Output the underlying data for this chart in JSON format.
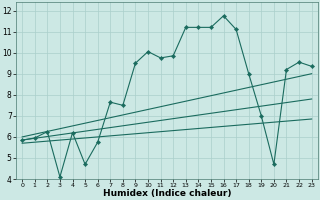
{
  "xlabel": "Humidex (Indice chaleur)",
  "xlim": [
    -0.5,
    23.5
  ],
  "ylim": [
    4,
    12.4
  ],
  "yticks": [
    4,
    5,
    6,
    7,
    8,
    9,
    10,
    11,
    12
  ],
  "xticks": [
    0,
    1,
    2,
    3,
    4,
    5,
    6,
    7,
    8,
    9,
    10,
    11,
    12,
    13,
    14,
    15,
    16,
    17,
    18,
    19,
    20,
    21,
    22,
    23
  ],
  "bg_color": "#cce8e4",
  "plot_bg": "#cce8e4",
  "line_color": "#1a6b5e",
  "grid_color": "#aacfcb",
  "wiggly_line": {
    "x": [
      0,
      1,
      2,
      3,
      4,
      5,
      6,
      7,
      8,
      9,
      10,
      11,
      12,
      13,
      14,
      15,
      16,
      17,
      18,
      19,
      20,
      21,
      22,
      23
    ],
    "y": [
      5.85,
      5.95,
      6.25,
      4.1,
      6.2,
      4.7,
      5.75,
      7.65,
      7.5,
      9.5,
      10.05,
      9.75,
      9.85,
      11.2,
      11.2,
      11.2,
      11.75,
      11.1,
      9.0,
      7.0,
      4.7,
      9.2,
      9.55,
      9.35
    ]
  },
  "straight_lines": [
    {
      "x": [
        0,
        23
      ],
      "y": [
        6.0,
        9.0
      ]
    },
    {
      "x": [
        0,
        23
      ],
      "y": [
        5.85,
        7.8
      ]
    },
    {
      "x": [
        0,
        23
      ],
      "y": [
        5.7,
        6.85
      ]
    }
  ]
}
